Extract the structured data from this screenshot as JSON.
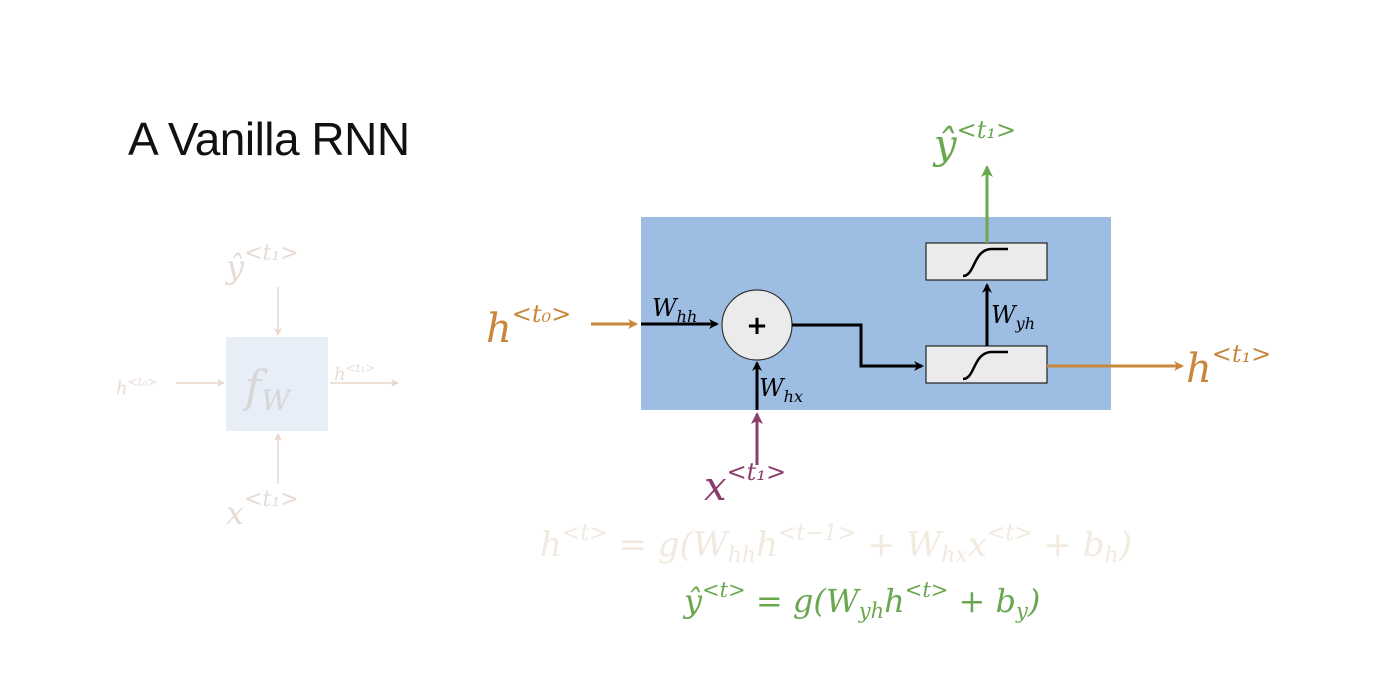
{
  "slide": {
    "title": "A Vanilla RNN"
  },
  "colors": {
    "hidden": "#c8873a",
    "output": "#6aa84f",
    "input": "#8b3d6b",
    "cell": "#9dbde3",
    "faded_box": "#e7eef8",
    "faded_text": "#e6dcd5",
    "faded_eq": "#f2e9df",
    "weight_box": "#ebebeb",
    "text": "#111111"
  },
  "icons": {
    "sum_node": "plus-icon",
    "activation": "sigmoid-curve-icon"
  },
  "faded_diagram": {
    "function_label": {
      "base": "f",
      "sub": "W"
    },
    "input_label": {
      "base": "x",
      "sup": "<t₁>"
    },
    "output_label": {
      "base": "ŷ",
      "sup": "<t₁>"
    },
    "prev_hidden_label": {
      "base": "h",
      "sup": "<t₀>"
    },
    "next_hidden_label": {
      "base": "h",
      "sup": "<t₁>"
    }
  },
  "cell": {
    "prev_hidden": {
      "base": "h",
      "sup": "<t₀>"
    },
    "next_hidden": {
      "base": "h",
      "sup": "<t₁>"
    },
    "input": {
      "base": "x",
      "sup": "<t₁>"
    },
    "output": {
      "base": "ŷ",
      "sup": "<t₁>"
    },
    "sum_symbol": "+",
    "w_hh": {
      "base": "W",
      "sub": "hh"
    },
    "w_hx": {
      "base": "W",
      "sub": "hx"
    },
    "w_yh": {
      "base": "W",
      "sub": "yh"
    }
  },
  "equations": {
    "hidden_state": {
      "p1": "h",
      "s1": "<t>",
      "p2": " = g(W",
      "s2": "hh",
      "p3": "h",
      "s3": "<t−1>",
      "p4": " + W",
      "s4": "hx",
      "p5": "x",
      "s5": "<t>",
      "p6": " + b",
      "s6": "h",
      "p7": ")"
    },
    "output": {
      "p1": "ŷ",
      "s1": "<t>",
      "p2": " = g(W",
      "s2": "yh",
      "p3": "h",
      "s3": "<t>",
      "p4": " + b",
      "s4": "y",
      "p5": ")"
    }
  }
}
